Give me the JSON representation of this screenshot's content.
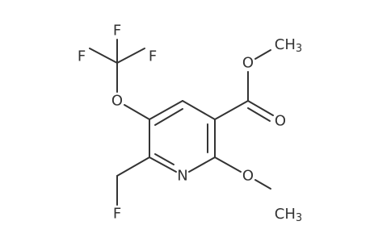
{
  "atoms": [
    {
      "label": "F"
    },
    {
      "label": "F"
    },
    {
      "label": "F"
    },
    {
      "label": "O"
    },
    {
      "label": "N"
    },
    {
      "label": "F"
    },
    {
      "label": "O"
    },
    {
      "label": "O"
    },
    {
      "label": "O"
    },
    {
      "label": "CH",
      "sub": "3"
    },
    {
      "label": "CH",
      "sub": "3"
    }
  ]
}
